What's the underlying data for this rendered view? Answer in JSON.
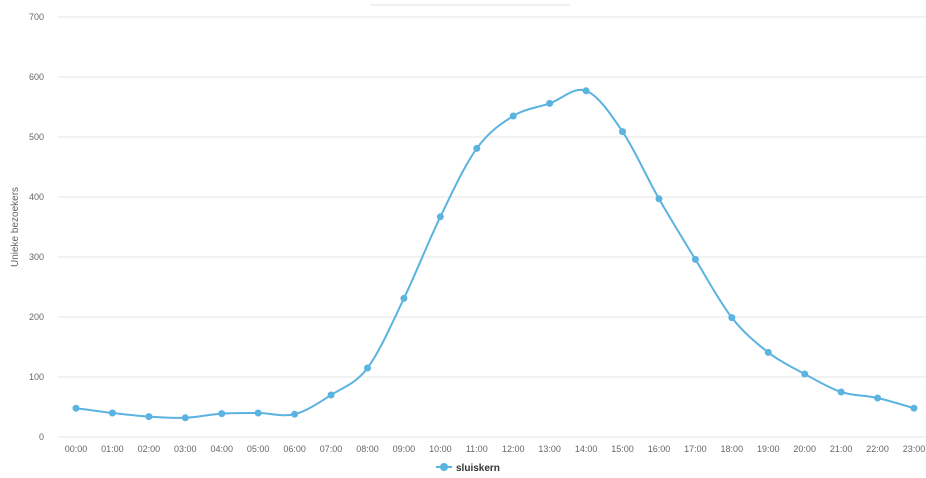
{
  "chart_data": {
    "type": "line",
    "title": "",
    "xlabel": "",
    "ylabel": "Unieke bezoekers",
    "ylim": [
      0,
      700
    ],
    "y_ticks": [
      0,
      100,
      200,
      300,
      400,
      500,
      600,
      700
    ],
    "grid": true,
    "legend_position": "bottom-center",
    "categories": [
      "00:00",
      "01:00",
      "02:00",
      "03:00",
      "04:00",
      "05:00",
      "06:00",
      "07:00",
      "08:00",
      "09:00",
      "10:00",
      "11:00",
      "12:00",
      "13:00",
      "14:00",
      "15:00",
      "16:00",
      "17:00",
      "18:00",
      "19:00",
      "20:00",
      "21:00",
      "22:00",
      "23:00"
    ],
    "series": [
      {
        "name": "sluiskern",
        "color": "#5bb3e0",
        "values": [
          48,
          40,
          34,
          32,
          39,
          40,
          38,
          70,
          115,
          231,
          367,
          481,
          535,
          556,
          577,
          509,
          397,
          296,
          199,
          141,
          105,
          75,
          65,
          48
        ]
      }
    ]
  }
}
